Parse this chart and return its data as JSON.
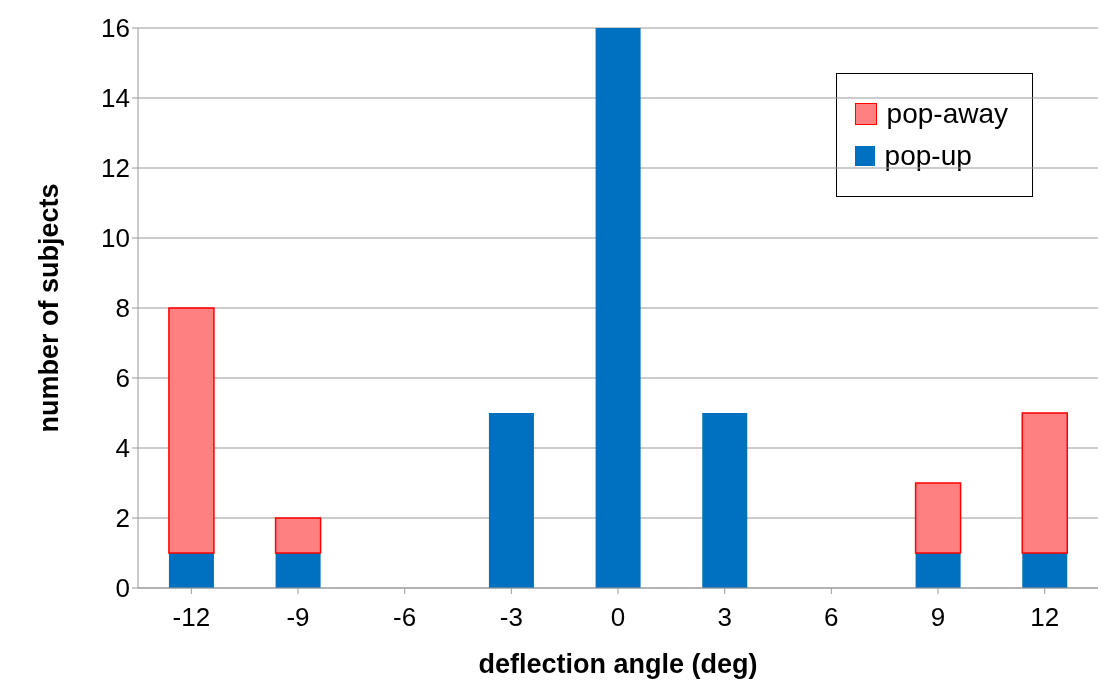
{
  "chart_data": {
    "type": "bar",
    "stacked": true,
    "xlabel": "deflection angle (deg)",
    "ylabel": "number of subjects",
    "categories": [
      "-12",
      "-9",
      "-6",
      "-3",
      "0",
      "3",
      "6",
      "9",
      "12"
    ],
    "series": [
      {
        "name": "pop-up",
        "color": "#0070c0",
        "values": [
          1,
          1,
          0,
          5,
          16,
          5,
          0,
          1,
          1
        ]
      },
      {
        "name": "pop-away",
        "color": "#ff8080",
        "values": [
          7,
          1,
          0,
          0,
          0,
          0,
          0,
          2,
          4
        ]
      }
    ],
    "ylim": [
      0,
      16
    ],
    "yticks": [
      0,
      2,
      4,
      6,
      8,
      10,
      12,
      14,
      16
    ],
    "grid": "y",
    "legend": "top right"
  }
}
